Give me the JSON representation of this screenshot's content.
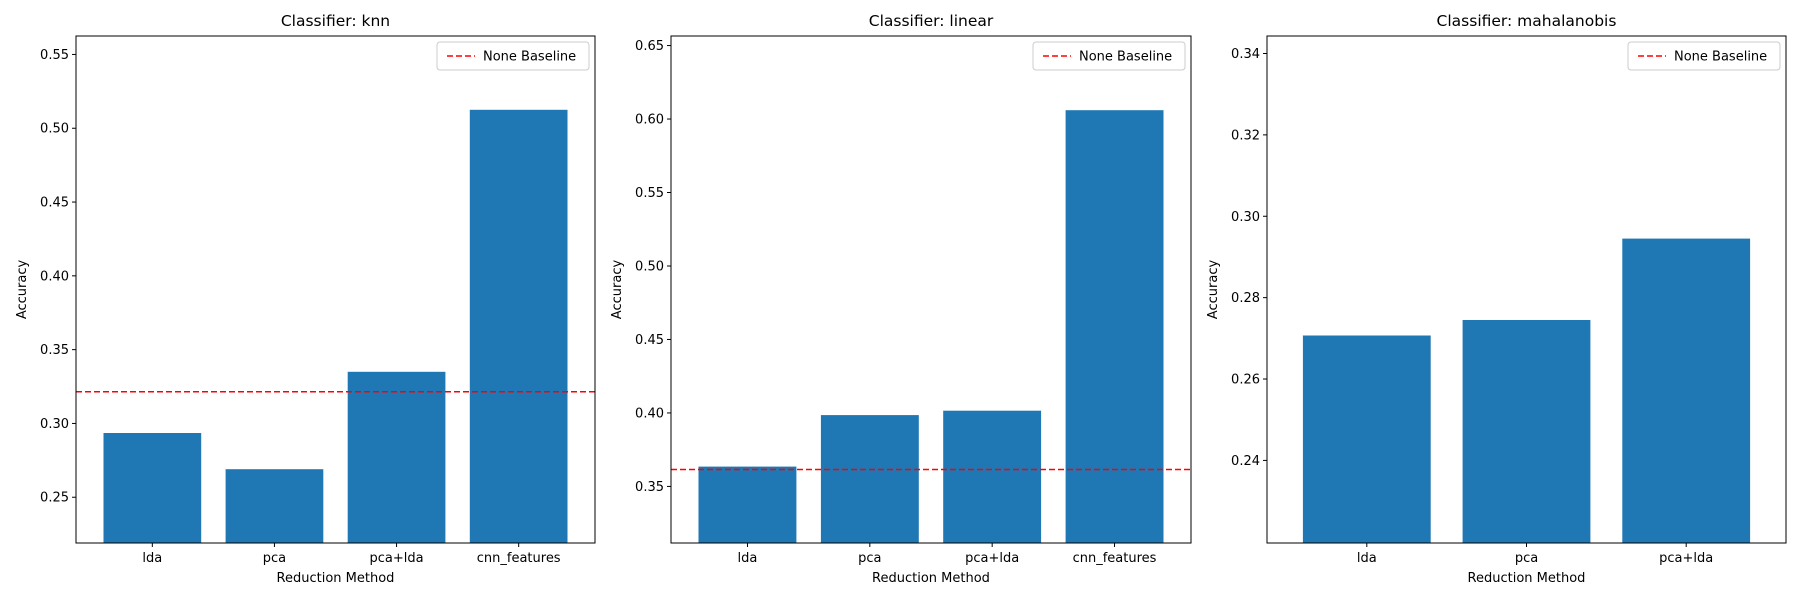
{
  "chart_data": [
    {
      "type": "bar",
      "title": "Classifier: knn",
      "xlabel": "Reduction Method",
      "ylabel": "Accuracy",
      "categories": [
        "lda",
        "pca",
        "pca+lda",
        "cnn_features"
      ],
      "values": [
        0.2935,
        0.269,
        0.335,
        0.5125
      ],
      "ylim": [
        0.219,
        0.5625
      ],
      "yticks": [
        0.25,
        0.3,
        0.35,
        0.4,
        0.45,
        0.5,
        0.55
      ],
      "ytick_labels": [
        "0.25",
        "0.30",
        "0.35",
        "0.40",
        "0.45",
        "0.50",
        "0.55"
      ],
      "baseline": {
        "label": "None Baseline",
        "value": 0.3215,
        "color": "#ff0000"
      },
      "bar_color": "#1f77b4",
      "legend": "top-right",
      "grid": false
    },
    {
      "type": "bar",
      "title": "Classifier: linear",
      "xlabel": "Reduction Method",
      "ylabel": "Accuracy",
      "categories": [
        "lda",
        "pca",
        "pca+lda",
        "cnn_features"
      ],
      "values": [
        0.3635,
        0.3985,
        0.4015,
        0.606
      ],
      "ylim": [
        0.3115,
        0.6565
      ],
      "yticks": [
        0.35,
        0.4,
        0.45,
        0.5,
        0.55,
        0.6,
        0.65
      ],
      "ytick_labels": [
        "0.35",
        "0.40",
        "0.45",
        "0.50",
        "0.55",
        "0.60",
        "0.65"
      ],
      "baseline": {
        "label": "None Baseline",
        "value": 0.3615,
        "color": "#ff0000"
      },
      "bar_color": "#1f77b4",
      "legend": "top-right",
      "grid": false
    },
    {
      "type": "bar",
      "title": "Classifier: mahalanobis",
      "xlabel": "Reduction Method",
      "ylabel": "Accuracy",
      "categories": [
        "lda",
        "pca",
        "pca+lda"
      ],
      "values": [
        0.2707,
        0.2745,
        0.2945
      ],
      "ylim": [
        0.2197,
        0.3443
      ],
      "yticks": [
        0.24,
        0.26,
        0.28,
        0.3,
        0.32,
        0.34
      ],
      "ytick_labels": [
        "0.24",
        "0.26",
        "0.28",
        "0.30",
        "0.32",
        "0.34"
      ],
      "baseline": {
        "label": "None Baseline",
        "value": null,
        "color": "#ff0000"
      },
      "bar_color": "#1f77b4",
      "legend": "top-right",
      "grid": false
    }
  ]
}
